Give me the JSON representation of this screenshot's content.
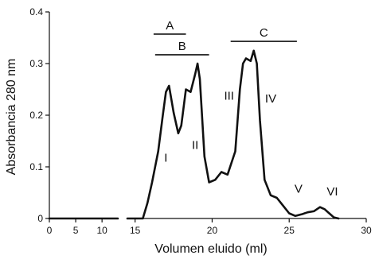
{
  "chart_data": {
    "type": "line",
    "title": "",
    "xlabel": "Volumen eluido (ml)",
    "ylabel": "Absorbancia 280 nm",
    "x_axis_segments": [
      {
        "range": [
          0,
          13
        ],
        "ticks": [
          0,
          5,
          10
        ]
      },
      {
        "range": [
          14.5,
          30
        ],
        "ticks": [
          15,
          20,
          25,
          30
        ]
      }
    ],
    "x_tick_labels": [
      "0",
      "5",
      "10",
      "15",
      "20",
      "25",
      "30"
    ],
    "ylim": [
      0,
      0.4
    ],
    "y_ticks": [
      0,
      0.1,
      0.2,
      0.3,
      0.4
    ],
    "y_tick_labels": [
      "0",
      "0.1",
      "0.2",
      "0.3",
      "0.4"
    ],
    "grid": false,
    "series": [
      {
        "color": "#111111",
        "x": [
          0,
          13,
          14.5,
          15.5,
          15.8,
          16.1,
          16.5,
          16.8,
          17.0,
          17.2,
          17.5,
          17.8,
          18.0,
          18.3,
          18.6,
          18.9,
          19.05,
          19.2,
          19.5,
          19.8,
          20.2,
          20.6,
          21.0,
          21.5,
          21.8,
          22.0,
          22.2,
          22.5,
          22.7,
          22.9,
          23.1,
          23.4,
          23.8,
          24.2,
          24.6,
          25.0,
          25.4,
          25.8,
          26.2,
          26.6,
          27.0,
          27.3,
          27.6,
          27.9,
          28.2
        ],
        "values": [
          0,
          0,
          0,
          0.0,
          0.03,
          0.07,
          0.13,
          0.2,
          0.245,
          0.257,
          0.205,
          0.165,
          0.18,
          0.25,
          0.245,
          0.28,
          0.3,
          0.27,
          0.12,
          0.07,
          0.075,
          0.09,
          0.085,
          0.13,
          0.25,
          0.3,
          0.31,
          0.305,
          0.325,
          0.3,
          0.19,
          0.075,
          0.045,
          0.04,
          0.025,
          0.01,
          0.005,
          0.008,
          0.012,
          0.014,
          0.022,
          0.018,
          0.01,
          0.002,
          0.0
        ]
      }
    ],
    "annotations": [
      {
        "text": "A",
        "x1": 16.2,
        "x2": 18.3,
        "y": 0.357
      },
      {
        "text": "B",
        "x1": 16.3,
        "x2": 19.8,
        "y": 0.317
      },
      {
        "text": "C",
        "x1": 21.2,
        "x2": 25.5,
        "y": 0.343
      }
    ],
    "peak_labels": [
      {
        "text": "I",
        "x": 17.0,
        "y": 0.11
      },
      {
        "text": "II",
        "x": 18.9,
        "y": 0.135
      },
      {
        "text": "III",
        "x": 21.1,
        "y": 0.23
      },
      {
        "text": "IV",
        "x": 23.8,
        "y": 0.225
      },
      {
        "text": "V",
        "x": 25.6,
        "y": 0.05
      },
      {
        "text": "VI",
        "x": 27.8,
        "y": 0.045
      }
    ]
  }
}
